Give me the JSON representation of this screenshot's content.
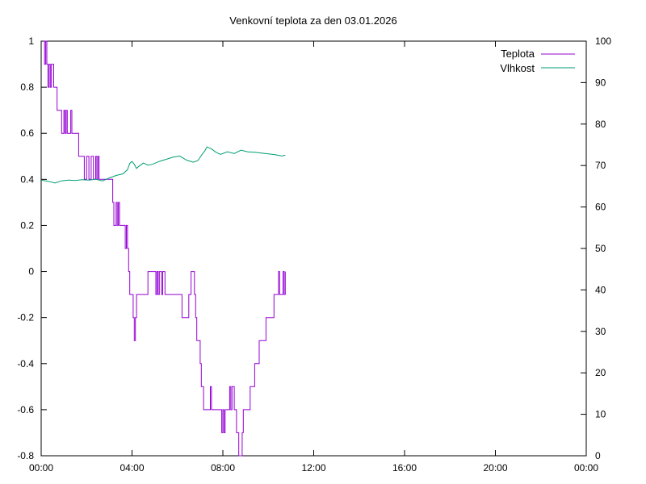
{
  "chart_data": {
    "type": "line",
    "title": "Venkovní teplota za den 03.01.2026",
    "legend_position": "top-right",
    "grid": false,
    "x_axis": {
      "unit": "hours",
      "range": [
        0,
        24
      ],
      "ticks": [
        0,
        4,
        8,
        12,
        16,
        20,
        24
      ],
      "tick_labels": [
        "00:00",
        "04:00",
        "08:00",
        "12:00",
        "16:00",
        "20:00",
        "00:00"
      ]
    },
    "y_axis_left": {
      "range": [
        -0.8,
        1
      ],
      "ticks": [
        -0.8,
        -0.6,
        -0.4,
        -0.2,
        0,
        0.2,
        0.4,
        0.6,
        0.8,
        1
      ],
      "tick_labels": [
        "-0.8",
        "-0.6",
        "-0.4",
        "-0.2",
        "0",
        "0.2",
        "0.4",
        "0.6",
        "0.8",
        "1"
      ]
    },
    "y_axis_right": {
      "range": [
        0,
        100
      ],
      "ticks": [
        0,
        10,
        20,
        30,
        40,
        50,
        60,
        70,
        80,
        90,
        100
      ],
      "tick_labels": [
        "0",
        "10",
        "20",
        "30",
        "40",
        "50",
        "60",
        "70",
        "80",
        "90",
        "100"
      ]
    },
    "series": [
      {
        "name": "Teplota",
        "axis": "left",
        "color": "#9400d3",
        "step": true,
        "x": [
          0.1,
          0.15,
          0.2,
          0.25,
          0.3,
          0.35,
          0.4,
          0.45,
          0.55,
          0.7,
          0.9,
          1.0,
          1.05,
          1.1,
          1.15,
          1.2,
          1.25,
          1.3,
          1.35,
          1.45,
          1.5,
          1.55,
          1.6,
          1.65,
          1.7,
          1.8,
          1.9,
          2.0,
          2.1,
          2.2,
          2.3,
          2.4,
          2.45,
          2.5,
          2.55,
          2.6,
          2.8,
          3.0,
          3.05,
          3.15,
          3.2,
          3.3,
          3.35,
          3.4,
          3.45,
          3.5,
          3.6,
          3.7,
          3.75,
          3.8,
          3.85,
          3.9,
          3.95,
          4.0,
          4.05,
          4.1,
          4.15,
          4.2,
          4.3,
          4.5,
          4.7,
          4.8,
          4.9,
          5.0,
          5.05,
          5.1,
          5.15,
          5.2,
          5.25,
          5.3,
          5.35,
          5.4,
          5.45,
          5.5,
          5.55,
          5.6,
          5.7,
          5.8,
          5.9,
          6.0,
          6.1,
          6.2,
          6.3,
          6.4,
          6.5,
          6.6,
          6.7,
          6.75,
          6.8,
          6.85,
          6.9,
          7.0,
          7.05,
          7.1,
          7.15,
          7.2,
          7.3,
          7.4,
          7.45,
          7.5,
          7.55,
          7.6,
          7.7,
          7.8,
          7.9,
          7.95,
          8.0,
          8.05,
          8.1,
          8.15,
          8.2,
          8.25,
          8.3,
          8.35,
          8.4,
          8.45,
          8.5,
          8.55,
          8.6,
          8.65,
          8.7,
          8.75,
          8.8,
          8.85,
          8.9,
          9.0,
          9.1,
          9.2,
          9.3,
          9.4,
          9.5,
          9.6,
          9.7,
          9.8,
          9.9,
          10.0,
          10.1,
          10.2,
          10.25,
          10.3,
          10.35,
          10.4,
          10.45,
          10.5,
          10.55,
          10.6,
          10.65,
          10.7,
          10.75
        ],
        "y": [
          1,
          0.9,
          1,
          0.9,
          0.8,
          0.9,
          0.8,
          0.9,
          0.8,
          0.7,
          0.6,
          0.7,
          0.6,
          0.7,
          0.6,
          0.6,
          0.6,
          0.7,
          0.6,
          0.6,
          0.6,
          0.6,
          0.6,
          0.5,
          0.5,
          0.5,
          0.4,
          0.5,
          0.4,
          0.5,
          0.4,
          0.5,
          0.4,
          0.5,
          0.4,
          0.4,
          0.4,
          0.4,
          0.4,
          0.3,
          0.2,
          0.3,
          0.2,
          0.3,
          0.2,
          0.2,
          0.2,
          0.1,
          0.2,
          0.1,
          0.0,
          -0.1,
          -0.1,
          -0.1,
          -0.2,
          -0.3,
          -0.2,
          -0.1,
          -0.1,
          -0.1,
          0.0,
          0.0,
          0.0,
          0.0,
          -0.1,
          0.0,
          -0.1,
          0.0,
          0.0,
          -0.1,
          0.0,
          0.0,
          -0.1,
          -0.1,
          -0.1,
          -0.1,
          -0.1,
          -0.1,
          -0.1,
          -0.1,
          -0.1,
          -0.2,
          -0.2,
          -0.2,
          -0.1,
          0.0,
          0.0,
          -0.1,
          -0.2,
          -0.3,
          -0.3,
          -0.4,
          -0.5,
          -0.5,
          -0.6,
          -0.6,
          -0.6,
          -0.6,
          -0.5,
          -0.6,
          -0.6,
          -0.6,
          -0.6,
          -0.6,
          -0.6,
          -0.7,
          -0.6,
          -0.7,
          -0.6,
          -0.6,
          -0.6,
          -0.6,
          -0.5,
          -0.6,
          -0.5,
          -0.5,
          -0.6,
          -0.6,
          -0.7,
          -0.7,
          -0.8,
          -0.8,
          -0.8,
          -0.7,
          -0.6,
          -0.6,
          -0.6,
          -0.5,
          -0.5,
          -0.4,
          -0.4,
          -0.3,
          -0.3,
          -0.3,
          -0.2,
          -0.2,
          -0.2,
          -0.2,
          -0.1,
          -0.1,
          -0.1,
          -0.1,
          0.0,
          -0.1,
          -0.1,
          -0.1,
          0.0,
          -0.1,
          0.0
        ]
      },
      {
        "name": "Vlhkost",
        "axis": "right",
        "color": "#009e73",
        "step": false,
        "x": [
          0.0,
          0.3,
          0.6,
          0.9,
          1.2,
          1.5,
          1.8,
          2.1,
          2.4,
          2.7,
          3.0,
          3.3,
          3.6,
          3.8,
          3.9,
          4.0,
          4.1,
          4.2,
          4.3,
          4.5,
          4.7,
          4.9,
          5.2,
          5.5,
          5.8,
          6.1,
          6.4,
          6.7,
          6.9,
          7.0,
          7.1,
          7.2,
          7.3,
          7.5,
          7.7,
          7.9,
          8.2,
          8.5,
          8.8,
          9.1,
          9.4,
          9.7,
          10.0,
          10.3,
          10.6,
          10.75
        ],
        "y": [
          66.5,
          66.2,
          65.8,
          66.3,
          66.5,
          66.4,
          66.6,
          66.5,
          66.7,
          66.3,
          67.0,
          67.6,
          68.0,
          69.0,
          70.5,
          71.0,
          70.3,
          69.3,
          69.8,
          70.6,
          70.1,
          70.3,
          71.0,
          71.5,
          72.0,
          72.3,
          71.3,
          70.8,
          71.2,
          72.0,
          72.8,
          73.5,
          74.5,
          74.0,
          73.2,
          72.7,
          73.3,
          72.9,
          73.7,
          73.3,
          73.2,
          73.0,
          72.8,
          72.6,
          72.3,
          72.5
        ]
      }
    ]
  }
}
